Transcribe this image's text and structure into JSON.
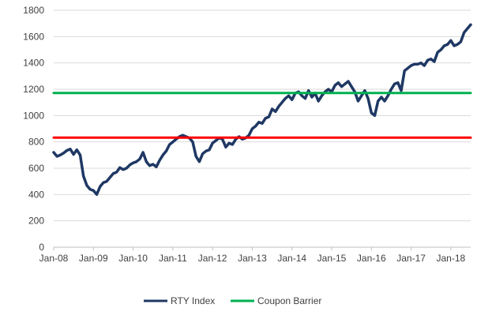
{
  "chart_data": {
    "type": "line",
    "title": "",
    "xlabel": "",
    "ylabel": "",
    "ylim": [
      0,
      1800
    ],
    "yticks": [
      0,
      200,
      400,
      600,
      800,
      1000,
      1200,
      1400,
      1600,
      1800
    ],
    "xlim": [
      "2008-01",
      "2018-07"
    ],
    "xticks": [
      "Jan-08",
      "Jan-09",
      "Jan-10",
      "Jan-11",
      "Jan-12",
      "Jan-13",
      "Jan-14",
      "Jan-15",
      "Jan-16",
      "Jan-17",
      "Jan-18"
    ],
    "grid": "horizontal",
    "legend": "bottom",
    "series": [
      {
        "name": "RTY Index",
        "color": "#1f3864",
        "x": [
          "2008-01",
          "2008-02",
          "2008-03",
          "2008-04",
          "2008-05",
          "2008-06",
          "2008-07",
          "2008-08",
          "2008-09",
          "2008-10",
          "2008-11",
          "2008-12",
          "2009-01",
          "2009-02",
          "2009-03",
          "2009-04",
          "2009-05",
          "2009-06",
          "2009-07",
          "2009-08",
          "2009-09",
          "2009-10",
          "2009-11",
          "2009-12",
          "2010-01",
          "2010-02",
          "2010-03",
          "2010-04",
          "2010-05",
          "2010-06",
          "2010-07",
          "2010-08",
          "2010-09",
          "2010-10",
          "2010-11",
          "2010-12",
          "2011-01",
          "2011-02",
          "2011-03",
          "2011-04",
          "2011-05",
          "2011-06",
          "2011-07",
          "2011-08",
          "2011-09",
          "2011-10",
          "2011-11",
          "2011-12",
          "2012-01",
          "2012-02",
          "2012-03",
          "2012-04",
          "2012-05",
          "2012-06",
          "2012-07",
          "2012-08",
          "2012-09",
          "2012-10",
          "2012-11",
          "2012-12",
          "2013-01",
          "2013-02",
          "2013-03",
          "2013-04",
          "2013-05",
          "2013-06",
          "2013-07",
          "2013-08",
          "2013-09",
          "2013-10",
          "2013-11",
          "2013-12",
          "2014-01",
          "2014-02",
          "2014-03",
          "2014-04",
          "2014-05",
          "2014-06",
          "2014-07",
          "2014-08",
          "2014-09",
          "2014-10",
          "2014-11",
          "2014-12",
          "2015-01",
          "2015-02",
          "2015-03",
          "2015-04",
          "2015-05",
          "2015-06",
          "2015-07",
          "2015-08",
          "2015-09",
          "2015-10",
          "2015-11",
          "2015-12",
          "2016-01",
          "2016-02",
          "2016-03",
          "2016-04",
          "2016-05",
          "2016-06",
          "2016-07",
          "2016-08",
          "2016-09",
          "2016-10",
          "2016-11",
          "2016-12",
          "2017-01",
          "2017-02",
          "2017-03",
          "2017-04",
          "2017-05",
          "2017-06",
          "2017-07",
          "2017-08",
          "2017-09",
          "2017-10",
          "2017-11",
          "2017-12",
          "2018-01",
          "2018-02",
          "2018-03",
          "2018-04",
          "2018-05",
          "2018-06",
          "2018-07"
        ],
        "values": [
          720,
          690,
          700,
          715,
          735,
          745,
          705,
          740,
          700,
          540,
          470,
          440,
          430,
          400,
          460,
          490,
          500,
          530,
          560,
          570,
          605,
          590,
          600,
          625,
          640,
          650,
          670,
          720,
          650,
          620,
          630,
          610,
          660,
          700,
          730,
          780,
          800,
          820,
          840,
          850,
          840,
          830,
          800,
          690,
          650,
          710,
          730,
          740,
          790,
          810,
          830,
          820,
          760,
          790,
          780,
          820,
          840,
          820,
          830,
          850,
          900,
          920,
          950,
          940,
          980,
          990,
          1050,
          1030,
          1070,
          1100,
          1130,
          1150,
          1120,
          1170,
          1180,
          1150,
          1130,
          1190,
          1140,
          1170,
          1110,
          1150,
          1180,
          1200,
          1180,
          1230,
          1250,
          1220,
          1240,
          1260,
          1220,
          1180,
          1110,
          1150,
          1190,
          1130,
          1020,
          1000,
          1110,
          1140,
          1110,
          1150,
          1200,
          1240,
          1250,
          1190,
          1340,
          1360,
          1380,
          1390,
          1390,
          1400,
          1380,
          1420,
          1430,
          1410,
          1480,
          1500,
          1530,
          1540,
          1570,
          1530,
          1540,
          1560,
          1630,
          1660,
          1690
        ]
      },
      {
        "name": "Coupon Barrier",
        "color": "#00b050",
        "x": [
          "2008-01",
          "2018-07"
        ],
        "values": [
          1172,
          1172
        ]
      },
      {
        "name": "",
        "color": "#ff0000",
        "x": [
          "2008-01",
          "2018-07"
        ],
        "values": [
          832,
          832
        ]
      }
    ]
  }
}
